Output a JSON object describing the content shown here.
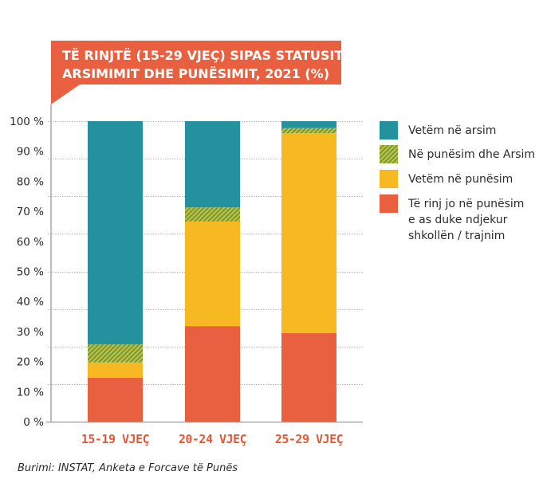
{
  "chart_data": {
    "type": "bar",
    "stacked": true,
    "title": "TË RINJTË (15-29 VJEÇ) SIPAS STATUSIT TË ARSIMIMIT DHE PUNËSIMIT, 2021 (%)",
    "title_lines": [
      "TË RINJTË (15-29 VJEÇ) SIPAS STATUSIT TË",
      "ARSIMIMIT DHE PUNËSIMIT, 2021 (%)"
    ],
    "xlabel": "",
    "ylabel": "",
    "ylim": [
      0,
      100
    ],
    "yticks": [
      "0 %",
      "10 %",
      "20 %",
      "30 %",
      "40 %",
      "50 %",
      "60 %",
      "70 %",
      "80 %",
      "90 %",
      "100 %"
    ],
    "ytick_values": [
      0,
      10,
      20,
      30,
      40,
      50,
      60,
      70,
      80,
      90,
      100
    ],
    "grid": true,
    "grid_style": "dotted",
    "grid_values": [
      12.5,
      25,
      37.5,
      50,
      62.5,
      75,
      87.5,
      100
    ],
    "categories": [
      "15-19 VJEÇ",
      "20-24 VJEÇ",
      "25-29 VJEÇ"
    ],
    "series": [
      {
        "name": "Të rinj jo në punësim e as duke ndjekur shkollën / trajnim",
        "color": "#e8603f",
        "pattern": "solid",
        "values": [
          14.6,
          31.8,
          29.5
        ]
      },
      {
        "name": "Vetëm në punësim",
        "color": "#f6b922",
        "pattern": "solid",
        "values": [
          5.1,
          34.8,
          66.5
        ]
      },
      {
        "name": "Në punësim dhe Arsim",
        "color": "#6f9a3c",
        "color2": "#c9c23f",
        "pattern": "hatch",
        "values": [
          6.0,
          4.7,
          1.7
        ]
      },
      {
        "name": "Vetëm në arsim",
        "color": "#23929e",
        "pattern": "solid",
        "values": [
          74.3,
          28.7,
          2.3
        ]
      }
    ],
    "legend": {
      "placement": "right",
      "entries": [
        {
          "series": "Vetëm në arsim",
          "lines": [
            "Vetëm në arsim"
          ]
        },
        {
          "series": "Në punësim dhe Arsim",
          "lines": [
            "Në punësim dhe Arsim"
          ]
        },
        {
          "series": "Vetëm në punësim",
          "lines": [
            "Vetëm në punësim"
          ]
        },
        {
          "series": "Të rinj jo në punësim e as duke ndjekur shkollën / trajnim",
          "lines": [
            "Të rinj jo në punësim",
            "e as duke ndjekur",
            "shkollën / trajnim"
          ]
        }
      ]
    }
  },
  "colors": {
    "banner": "#e8603f",
    "axis": "#9a9a9a",
    "grid": "#b5b5b5",
    "xtick": "#e05a3a"
  },
  "source": "Burimi: INSTAT, Anketa e Forcave të Punës"
}
